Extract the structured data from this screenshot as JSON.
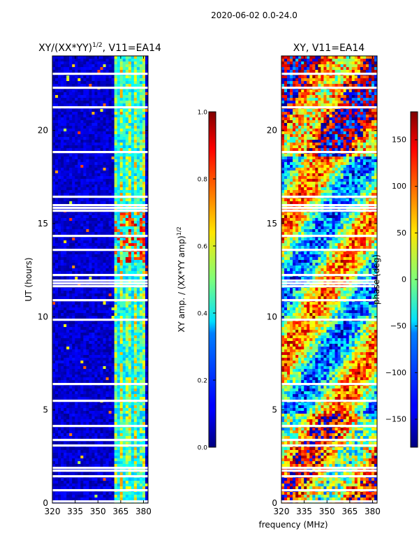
{
  "figure": {
    "suptitle": "2020-06-02 0.0-24.0",
    "xlabel_shared": "frequency (MHz)"
  },
  "chart_data": [
    {
      "type": "heatmap",
      "title": "XY/(XX*YY)",
      "title_exponent": "1/2",
      "title_suffix": ", V11=EA14",
      "ylabel": "UT (hours)",
      "xticks": [
        "320",
        "335",
        "350",
        "365",
        "380"
      ],
      "xtick_values": [
        320,
        335,
        350,
        365,
        380
      ],
      "yticks": [
        "0",
        "5",
        "10",
        "15",
        "20"
      ],
      "ytick_values": [
        0,
        5,
        10,
        15,
        20
      ],
      "xlim": [
        320,
        383
      ],
      "ylim": [
        0,
        24
      ],
      "colorbar": {
        "label": "XY amp. / (XX*YY amp)",
        "label_exponent": "1/2",
        "ticks": [
          "0.0",
          "0.2",
          "0.4",
          "0.6",
          "0.8",
          "1.0"
        ],
        "tick_values": [
          0.0,
          0.2,
          0.4,
          0.6,
          0.8,
          1.0
        ],
        "range": [
          0,
          1
        ],
        "colormap": "jet"
      }
    },
    {
      "type": "heatmap",
      "title": "XY, V11=EA14",
      "xticks": [
        "320",
        "335",
        "350",
        "365",
        "380"
      ],
      "xtick_values": [
        320,
        335,
        350,
        365,
        380
      ],
      "yticks": [
        "0",
        "5",
        "10",
        "15",
        "20"
      ],
      "ytick_values": [
        0,
        5,
        10,
        15,
        20
      ],
      "xlim": [
        320,
        383
      ],
      "ylim": [
        0,
        24
      ],
      "colorbar": {
        "label": "phase (deg)",
        "ticks": [
          "−150",
          "−100",
          "−50",
          "0",
          "50",
          "100",
          "150"
        ],
        "tick_values": [
          -150,
          -100,
          -50,
          0,
          50,
          100,
          150
        ],
        "range": [
          -180,
          180
        ],
        "colormap": "jet"
      }
    }
  ]
}
